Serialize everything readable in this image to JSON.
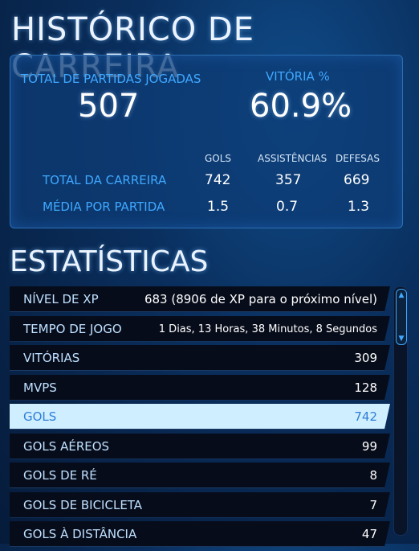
{
  "header": {
    "title": "HISTÓRICO DE CARREIRA"
  },
  "summary": {
    "total_label": "TOTAL DE PARTIDAS JOGADAS",
    "total_value": "507",
    "win_label": "VITÓRIA %",
    "win_value": "60.9%"
  },
  "table": {
    "columns": [
      "GOLS",
      "ASSISTÊNCIAS",
      "DEFESAS"
    ],
    "rows": [
      {
        "label": "TOTAL DA CARREIRA",
        "values": [
          "742",
          "357",
          "669"
        ]
      },
      {
        "label": "MÉDIA POR PARTIDA",
        "values": [
          "1.5",
          "0.7",
          "1.3"
        ]
      }
    ]
  },
  "stats": {
    "title": "ESTATÍSTICAS",
    "items": [
      {
        "label": "NÍVEL DE XP",
        "value": "683 (8906 de XP para o próximo nível)"
      },
      {
        "label": "TEMPO DE JOGO",
        "value": "1 Dias, 13 Horas, 38 Minutos, 8 Segundos"
      },
      {
        "label": "VITÓRIAS",
        "value": "309"
      },
      {
        "label": "MVPS",
        "value": "128"
      },
      {
        "label": "GOLS",
        "value": "742",
        "selected": true
      },
      {
        "label": "GOLS AÉREOS",
        "value": "99"
      },
      {
        "label": "GOLS DE RÉ",
        "value": "8"
      },
      {
        "label": "GOLS DE BICICLETA",
        "value": "7"
      },
      {
        "label": "GOLS À DISTÂNCIA",
        "value": "47"
      }
    ]
  },
  "icons": {
    "scroll_up": "chevron-up-icon",
    "scroll_down": "chevron-down-icon"
  },
  "colors": {
    "accent": "#3fa8ff",
    "selected_bg": "#cfeeff"
  }
}
